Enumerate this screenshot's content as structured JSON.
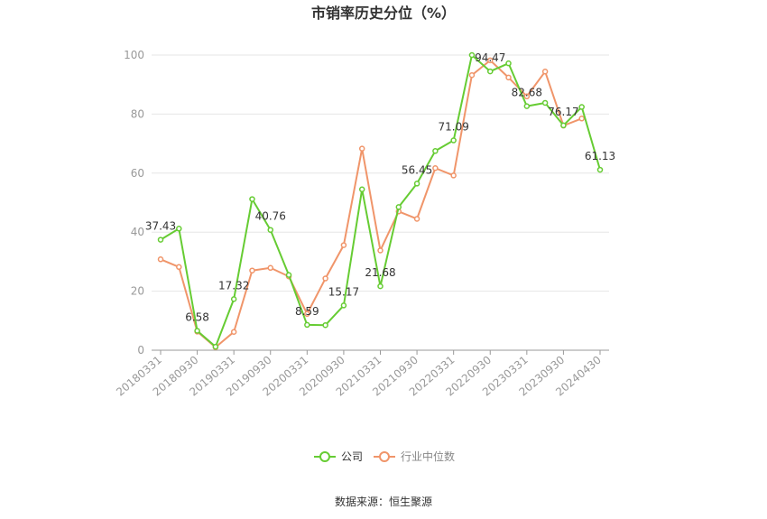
{
  "chart_data": {
    "type": "line",
    "title": "市销率历史分位（%）",
    "source": "数据来源：恒生聚源",
    "ylim": [
      0,
      100
    ],
    "yticks": [
      0,
      20,
      40,
      60,
      80,
      100
    ],
    "grid": true,
    "legend_position": "bottom",
    "x": [
      "20180331",
      "20180630",
      "20180930",
      "20181231",
      "20190331",
      "20190630",
      "20190930",
      "20191231",
      "20200331",
      "20200630",
      "20200930",
      "20201231",
      "20210331",
      "20210630",
      "20210930",
      "20211231",
      "20220331",
      "20220630",
      "20220930",
      "20221231",
      "20230331",
      "20230630",
      "20230930",
      "20231231",
      "20240430"
    ],
    "xtick_labels": [
      "20180331",
      "20180930",
      "20190331",
      "20190930",
      "20200331",
      "20200930",
      "20210331",
      "20210930",
      "20220331",
      "20220930",
      "20230331",
      "20230930",
      "20240430"
    ],
    "series": [
      {
        "name": "公司",
        "color": "#66cc33",
        "values": [
          37.43,
          41.2,
          6.58,
          1.2,
          17.32,
          51.2,
          40.76,
          25.5,
          8.59,
          8.5,
          15.17,
          54.5,
          21.68,
          48.5,
          56.45,
          67.5,
          71.09,
          100,
          94.47,
          97.2,
          82.68,
          83.8,
          76.17,
          82.4,
          61.13
        ],
        "labels": {
          "0": "37.43",
          "2": "6.58",
          "4": "17.32",
          "6": "40.76",
          "8": "8.59",
          "10": "15.17",
          "12": "21.68",
          "14": "56.45",
          "16": "71.09",
          "18": "94.47",
          "20": "82.68",
          "22": "76.17",
          "24": "61.13"
        }
      },
      {
        "name": "行业中位数",
        "color": "#f0956a",
        "values": [
          30.8,
          28.2,
          6.3,
          1.0,
          6.2,
          27.0,
          27.9,
          25.0,
          12.3,
          24.3,
          35.6,
          68.3,
          33.8,
          47.0,
          44.5,
          61.7,
          59.2,
          93.2,
          98.2,
          92.4,
          86.0,
          94.4,
          76.1,
          78.5,
          null
        ]
      }
    ]
  }
}
